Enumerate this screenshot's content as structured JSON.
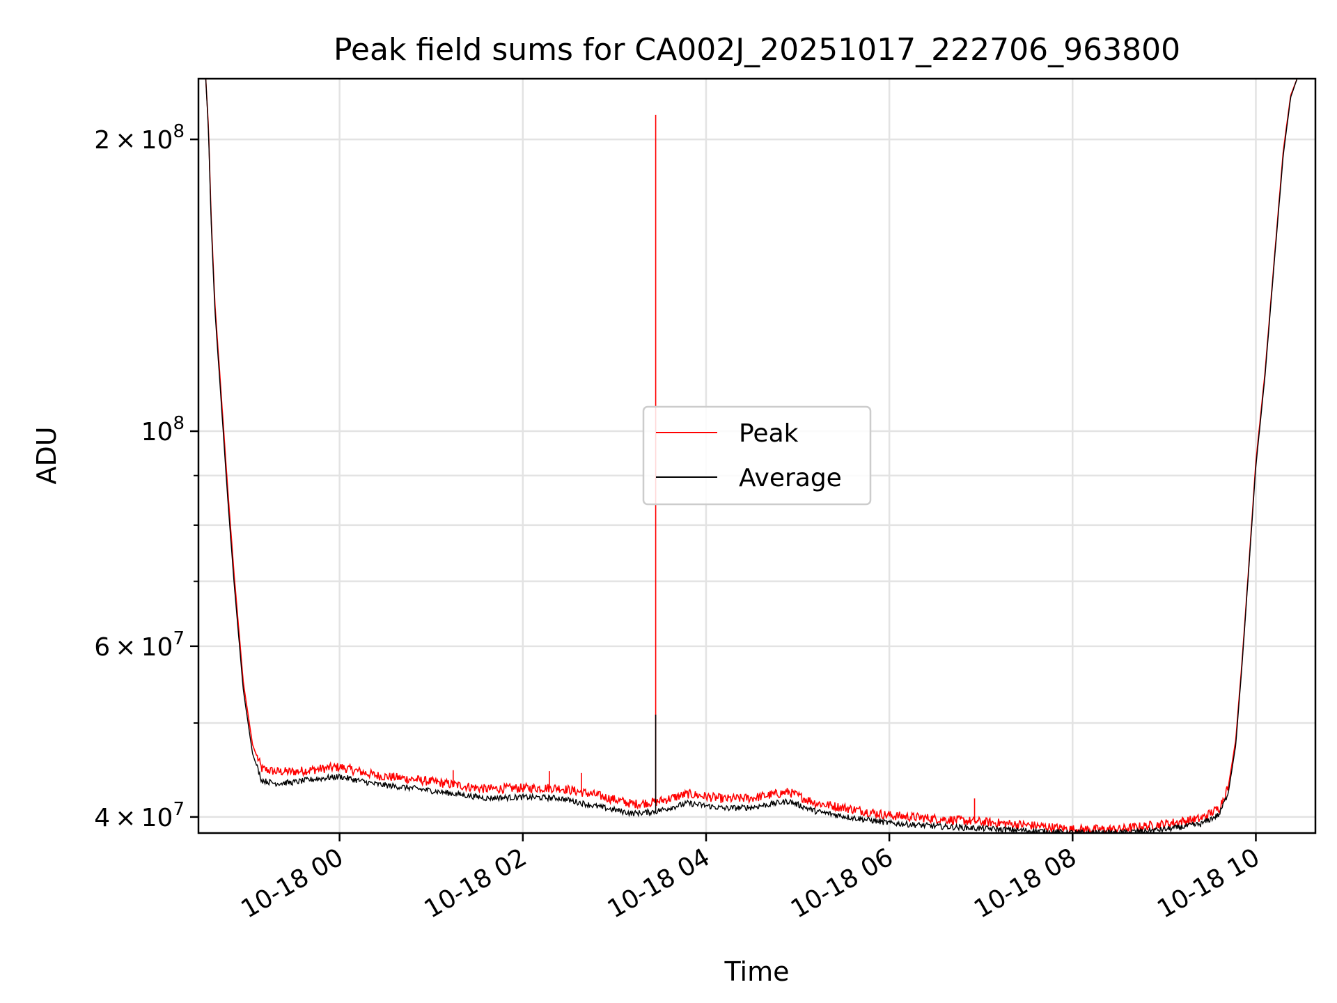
{
  "chart_data": {
    "type": "line",
    "title": "Peak field sums for CA002J_20251017_222706_963800",
    "xlabel": "Time",
    "ylabel": "ADU",
    "yscale": "log",
    "ylim": [
      38500000,
      231000000
    ],
    "xlim_hours": [
      -1.54,
      10.65
    ],
    "grid": true,
    "legend_position": "center",
    "x_ticks": [
      {
        "hour": 0,
        "label": "10-18 00"
      },
      {
        "hour": 2,
        "label": "10-18 02"
      },
      {
        "hour": 4,
        "label": "10-18 04"
      },
      {
        "hour": 6,
        "label": "10-18 06"
      },
      {
        "hour": 8,
        "label": "10-18 08"
      },
      {
        "hour": 10,
        "label": "10-18 10"
      }
    ],
    "y_ticks_major": [
      {
        "value": 40000000,
        "base": "4",
        "exp": "7"
      },
      {
        "value": 60000000,
        "base": "6",
        "exp": "7"
      },
      {
        "value": 100000000,
        "base": "",
        "exp": "8"
      },
      {
        "value": 200000000,
        "base": "2",
        "exp": "8"
      }
    ],
    "y_ticks_minor": [
      50000000,
      70000000,
      80000000,
      90000000
    ],
    "series": [
      {
        "name": "Peak",
        "color": "#ff0000",
        "x_hours": [
          -1.46,
          -1.43,
          -1.4,
          -1.36,
          -1.3,
          -1.22,
          -1.15,
          -1.05,
          -0.95,
          -0.85,
          -0.7,
          -0.5,
          -0.3,
          0.0,
          0.4,
          0.8,
          1.2,
          1.6,
          2.0,
          2.4,
          2.8,
          3.2,
          3.45,
          3.8,
          4.2,
          4.5,
          4.9,
          5.2,
          5.6,
          6.0,
          6.5,
          7.0,
          7.5,
          8.0,
          8.5,
          9.0,
          9.4,
          9.6,
          9.7,
          9.78,
          9.85,
          9.92,
          10.0,
          10.1,
          10.2,
          10.3,
          10.38,
          10.45
        ],
        "values": [
          231000000,
          205000000,
          165000000,
          135000000,
          112000000,
          87000000,
          71000000,
          55000000,
          47500000,
          44800000,
          44500000,
          44500000,
          44700000,
          45000000,
          44100000,
          43700000,
          43200000,
          42700000,
          42800000,
          42800000,
          42100000,
          41200000,
          41400000,
          42200000,
          41700000,
          41800000,
          42400000,
          41300000,
          40700000,
          40100000,
          39800000,
          39500000,
          39200000,
          38800000,
          38800000,
          39300000,
          39800000,
          40800000,
          43000000,
          48000000,
          58000000,
          72000000,
          93000000,
          115000000,
          150000000,
          195000000,
          222000000,
          231000000
        ],
        "spikes": [
          {
            "hour": 3.45,
            "value": 212000000
          },
          {
            "hour": 1.24,
            "value": 44700000
          },
          {
            "hour": 2.29,
            "value": 44600000
          },
          {
            "hour": 2.64,
            "value": 44400000
          },
          {
            "hour": 6.93,
            "value": 41800000
          }
        ]
      },
      {
        "name": "Average",
        "color": "#000000",
        "x_hours": [
          -1.46,
          -1.43,
          -1.4,
          -1.36,
          -1.3,
          -1.22,
          -1.15,
          -1.05,
          -0.95,
          -0.85,
          -0.7,
          -0.5,
          -0.3,
          0.0,
          0.4,
          0.8,
          1.2,
          1.6,
          2.0,
          2.4,
          2.8,
          3.2,
          3.45,
          3.8,
          4.2,
          4.5,
          4.9,
          5.2,
          5.6,
          6.0,
          6.5,
          7.0,
          7.5,
          8.0,
          8.5,
          9.0,
          9.4,
          9.6,
          9.7,
          9.78,
          9.85,
          9.92,
          10.0,
          10.1,
          10.2,
          10.3,
          10.38,
          10.45
        ],
        "values": [
          231000000,
          203000000,
          163000000,
          133000000,
          110000000,
          85000000,
          69500000,
          54000000,
          46500000,
          43600000,
          43300000,
          43400000,
          43700000,
          44000000,
          43200000,
          42800000,
          42300000,
          41800000,
          41900000,
          41800000,
          41000000,
          40300000,
          40500000,
          41300000,
          40800000,
          40900000,
          41500000,
          40500000,
          39900000,
          39400000,
          39100000,
          38900000,
          38700000,
          38500000,
          38500000,
          38800000,
          39300000,
          40200000,
          42400000,
          47400000,
          57500000,
          71500000,
          92000000,
          114000000,
          149000000,
          193000000,
          221000000,
          231000000
        ],
        "spikes": [
          {
            "hour": 3.45,
            "value": 51000000
          }
        ]
      }
    ]
  }
}
